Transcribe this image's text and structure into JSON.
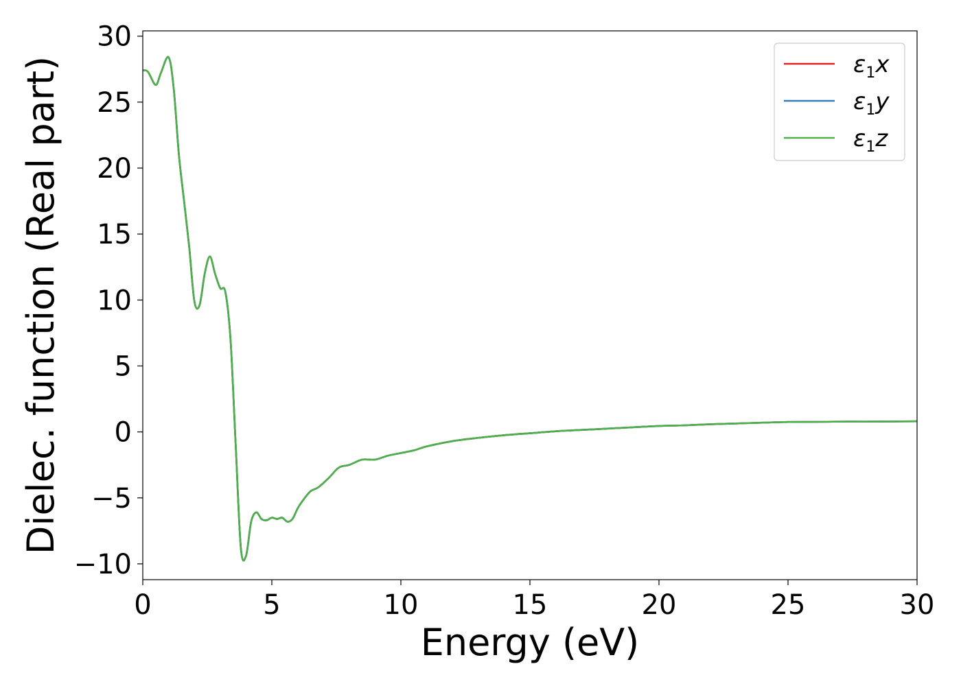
{
  "chart_data": {
    "type": "line",
    "title": "",
    "xlabel": "Energy (eV)",
    "ylabel": "Dielec. function (Real part)",
    "xlim": [
      0,
      30
    ],
    "ylim": [
      -11.2,
      30.4
    ],
    "xticks": [
      0,
      5,
      10,
      15,
      20,
      25,
      30
    ],
    "xtick_labels": [
      "0",
      "5",
      "10",
      "15",
      "20",
      "25",
      "30"
    ],
    "yticks": [
      -10,
      -5,
      0,
      5,
      10,
      15,
      20,
      25,
      30
    ],
    "ytick_labels": [
      "−10",
      "−5",
      "0",
      "5",
      "10",
      "15",
      "20",
      "25",
      "30"
    ],
    "grid": false,
    "legend_position": "top-right",
    "x": [
      0,
      0.2,
      0.5,
      0.7,
      1.0,
      1.2,
      1.4,
      1.6,
      1.8,
      2.0,
      2.2,
      2.4,
      2.6,
      2.8,
      3.0,
      3.2,
      3.4,
      3.6,
      3.8,
      4.0,
      4.2,
      4.4,
      4.6,
      4.8,
      5.0,
      5.2,
      5.4,
      5.6,
      5.8,
      6.0,
      6.2,
      6.5,
      6.8,
      7.2,
      7.6,
      8.0,
      8.5,
      9.0,
      9.5,
      10.0,
      10.5,
      11.0,
      12.0,
      13.0,
      14.0,
      15.0,
      16.0,
      17.0,
      18.0,
      19.0,
      20.0,
      21.0,
      22.0,
      23.0,
      24.0,
      25.0,
      26.0,
      27.0,
      28.0,
      29.0,
      30.0
    ],
    "series": [
      {
        "name": "x",
        "color": "#d62728",
        "values": [
          27.4,
          27.3,
          26.3,
          27.2,
          28.4,
          26.0,
          21.0,
          17.5,
          14.0,
          9.9,
          9.6,
          12.0,
          13.3,
          12.0,
          10.9,
          10.6,
          7.0,
          -1.0,
          -8.8,
          -9.4,
          -6.8,
          -6.1,
          -6.6,
          -6.7,
          -6.5,
          -6.6,
          -6.5,
          -6.8,
          -6.6,
          -5.8,
          -5.2,
          -4.5,
          -4.2,
          -3.5,
          -2.7,
          -2.5,
          -2.1,
          -2.1,
          -1.8,
          -1.6,
          -1.4,
          -1.1,
          -0.7,
          -0.45,
          -0.25,
          -0.1,
          0.05,
          0.15,
          0.25,
          0.35,
          0.45,
          0.5,
          0.58,
          0.64,
          0.7,
          0.75,
          0.76,
          0.78,
          0.78,
          0.79,
          0.8
        ]
      },
      {
        "name": "y",
        "color": "#377eb8",
        "values": [
          27.4,
          27.3,
          26.3,
          27.2,
          28.4,
          26.0,
          21.0,
          17.5,
          14.0,
          9.9,
          9.6,
          12.0,
          13.3,
          12.0,
          10.9,
          10.6,
          7.0,
          -1.0,
          -8.8,
          -9.4,
          -6.8,
          -6.1,
          -6.6,
          -6.7,
          -6.5,
          -6.6,
          -6.5,
          -6.8,
          -6.6,
          -5.8,
          -5.2,
          -4.5,
          -4.2,
          -3.5,
          -2.7,
          -2.5,
          -2.1,
          -2.1,
          -1.8,
          -1.6,
          -1.4,
          -1.1,
          -0.7,
          -0.45,
          -0.25,
          -0.1,
          0.05,
          0.15,
          0.25,
          0.35,
          0.45,
          0.5,
          0.58,
          0.64,
          0.7,
          0.75,
          0.76,
          0.78,
          0.78,
          0.79,
          0.8
        ]
      },
      {
        "name": "z",
        "color": "#4daf4a",
        "values": [
          27.4,
          27.3,
          26.3,
          27.2,
          28.4,
          26.0,
          21.0,
          17.5,
          14.0,
          9.9,
          9.6,
          12.0,
          13.3,
          12.0,
          10.9,
          10.6,
          7.0,
          -1.0,
          -8.8,
          -9.4,
          -6.8,
          -6.1,
          -6.6,
          -6.7,
          -6.5,
          -6.6,
          -6.5,
          -6.8,
          -6.6,
          -5.8,
          -5.2,
          -4.5,
          -4.2,
          -3.5,
          -2.7,
          -2.5,
          -2.1,
          -2.1,
          -1.8,
          -1.6,
          -1.4,
          -1.1,
          -0.7,
          -0.45,
          -0.25,
          -0.1,
          0.05,
          0.15,
          0.25,
          0.35,
          0.45,
          0.5,
          0.58,
          0.64,
          0.7,
          0.75,
          0.76,
          0.78,
          0.78,
          0.79,
          0.8
        ]
      }
    ],
    "legend": [
      {
        "symbol": "ε",
        "sub": "1",
        "suffix": "x",
        "color": "#d62728"
      },
      {
        "symbol": "ε",
        "sub": "1",
        "suffix": "y",
        "color": "#377eb8"
      },
      {
        "symbol": "ε",
        "sub": "1",
        "suffix": "z",
        "color": "#4daf4a"
      }
    ]
  }
}
